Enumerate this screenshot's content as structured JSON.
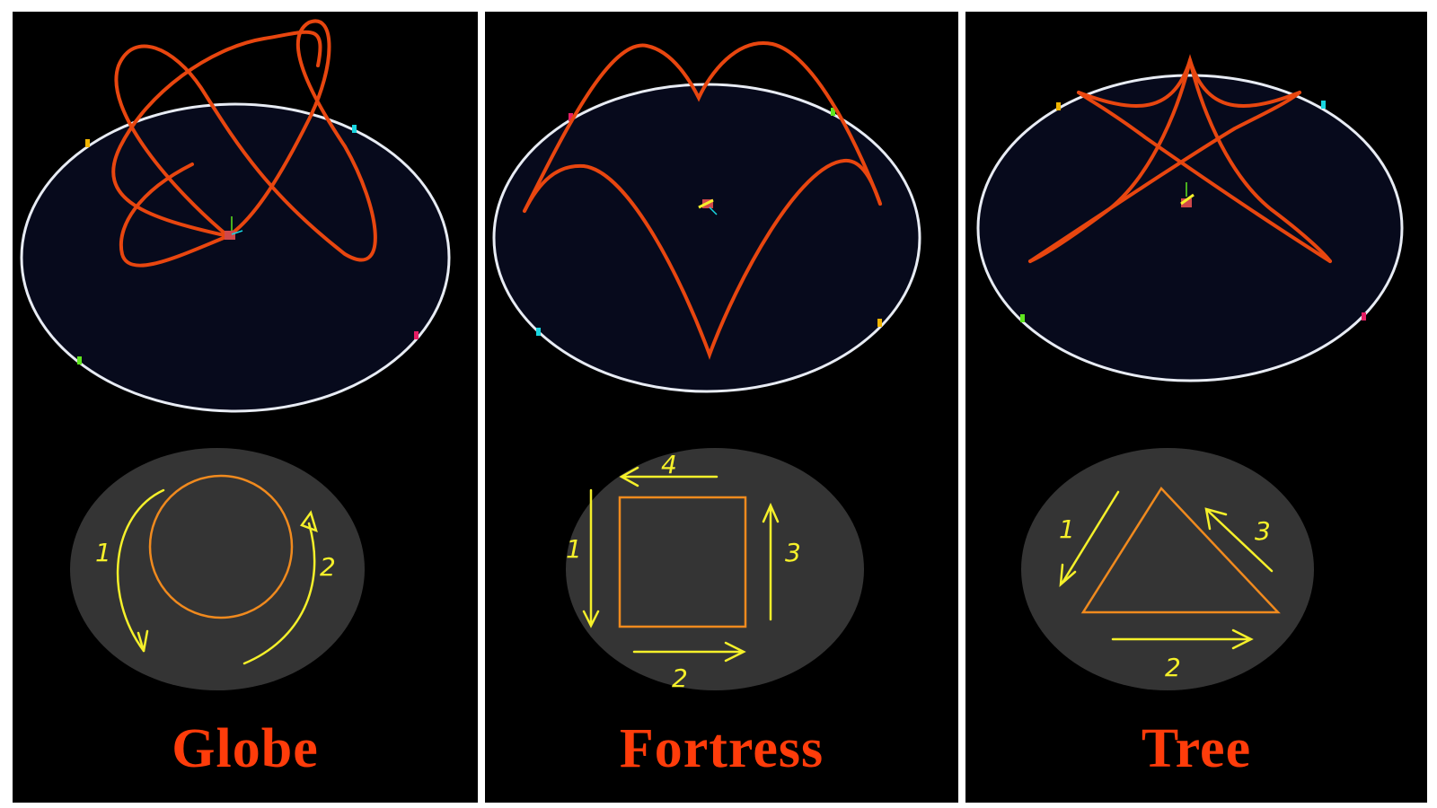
{
  "panels": [
    {
      "title": "Globe",
      "steps": [
        "1",
        "2"
      ],
      "sequence": [
        "trace left semicircle downward",
        "trace right semicircle upward"
      ],
      "marker_colors": [
        "#f0b400",
        "#19d6e0",
        "#e61e64",
        "#5fe61e"
      ]
    },
    {
      "title": "Fortress",
      "steps": [
        "1",
        "2",
        "3",
        "4"
      ],
      "marker_colors": [
        "#e61e64",
        "#5fe61e",
        "#19d6e0",
        "#f0b400"
      ]
    },
    {
      "title": "Tree",
      "steps": [
        "1",
        "2",
        "3"
      ],
      "marker_colors": [
        "#f0b400",
        "#19d6e0",
        "#5fe61e",
        "#e61e64"
      ]
    }
  ],
  "colors": {
    "trajectory": "#e8460f",
    "arena_ring": "#e8ecf4",
    "arena_floor": "#070a1c",
    "sketch_bg": "#343434",
    "sketch_shape": "#f08a1e",
    "sketch_arrow": "#f5f02a",
    "title": "#ff3c0a"
  }
}
